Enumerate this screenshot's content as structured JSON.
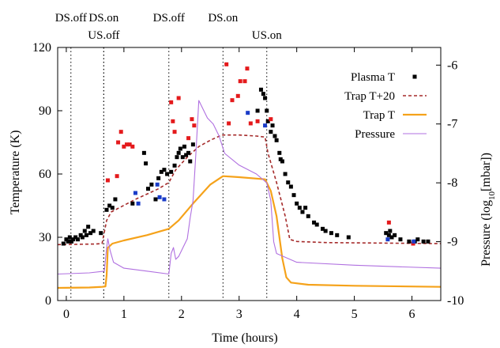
{
  "chart_data": {
    "type": "line",
    "xlabel": "Time (hours)",
    "ylabel_left": "Temperature (K)",
    "ylabel_right_prefix": "Pressure (log",
    "ylabel_right_sub": "10",
    "ylabel_right_suffix": "[mbar])",
    "xlim": [
      -0.15,
      6.5
    ],
    "ylim_left": [
      0,
      120
    ],
    "ylim_right": [
      -10,
      -5.7
    ],
    "x_ticks": [
      0,
      1,
      2,
      3,
      4,
      5,
      6
    ],
    "y_left_ticks": [
      0,
      30,
      60,
      90,
      120
    ],
    "y_right_ticks": [
      -10,
      -9,
      -8,
      -7,
      -6
    ],
    "grid": false,
    "legend_position": "top-right",
    "events": [
      {
        "x": 0.08,
        "label": "DS.off",
        "row": 1
      },
      {
        "x": 0.65,
        "label": "DS.on",
        "row": 1
      },
      {
        "x": 0.65,
        "label": "US.off",
        "row": 2
      },
      {
        "x": 1.78,
        "label": "DS.off",
        "row": 1
      },
      {
        "x": 2.72,
        "label": "DS.on",
        "row": 1
      },
      {
        "x": 3.48,
        "label": "US.on",
        "row": 2
      }
    ],
    "series": [
      {
        "name": "Plasma T",
        "kind": "scatter",
        "color": "#000000",
        "points": [
          [
            -0.05,
            27
          ],
          [
            0.0,
            29
          ],
          [
            0.03,
            28
          ],
          [
            0.06,
            30
          ],
          [
            0.09,
            28
          ],
          [
            0.12,
            29
          ],
          [
            0.16,
            30
          ],
          [
            0.2,
            29
          ],
          [
            0.25,
            31
          ],
          [
            0.28,
            30
          ],
          [
            0.32,
            33
          ],
          [
            0.35,
            31
          ],
          [
            0.38,
            35
          ],
          [
            0.42,
            32
          ],
          [
            0.47,
            33
          ],
          [
            0.6,
            32
          ],
          [
            0.7,
            43
          ],
          [
            0.75,
            45
          ],
          [
            0.8,
            44
          ],
          [
            0.85,
            48
          ],
          [
            1.15,
            46
          ],
          [
            1.35,
            70
          ],
          [
            1.38,
            65
          ],
          [
            1.42,
            53
          ],
          [
            1.48,
            55
          ],
          [
            1.55,
            48
          ],
          [
            1.6,
            58
          ],
          [
            1.65,
            61
          ],
          [
            1.7,
            62
          ],
          [
            1.75,
            60
          ],
          [
            1.82,
            61
          ],
          [
            1.88,
            64
          ],
          [
            1.92,
            68
          ],
          [
            1.95,
            70
          ],
          [
            1.98,
            72
          ],
          [
            2.02,
            68
          ],
          [
            2.05,
            73
          ],
          [
            2.08,
            69
          ],
          [
            2.12,
            70
          ],
          [
            2.15,
            66
          ],
          [
            2.2,
            74
          ],
          [
            3.32,
            90
          ],
          [
            3.38,
            100
          ],
          [
            3.42,
            98
          ],
          [
            3.45,
            96
          ],
          [
            3.48,
            90
          ],
          [
            3.5,
            85
          ],
          [
            3.55,
            80
          ],
          [
            3.58,
            83
          ],
          [
            3.62,
            78
          ],
          [
            3.65,
            76
          ],
          [
            3.7,
            70
          ],
          [
            3.72,
            67
          ],
          [
            3.75,
            66
          ],
          [
            3.8,
            60
          ],
          [
            3.85,
            56
          ],
          [
            3.9,
            54
          ],
          [
            3.95,
            50
          ],
          [
            4.0,
            46
          ],
          [
            4.05,
            44
          ],
          [
            4.1,
            42
          ],
          [
            4.15,
            44
          ],
          [
            4.2,
            40
          ],
          [
            4.3,
            37
          ],
          [
            4.35,
            36
          ],
          [
            4.45,
            34
          ],
          [
            4.5,
            33
          ],
          [
            4.6,
            32
          ],
          [
            4.7,
            31
          ],
          [
            4.9,
            30
          ],
          [
            5.55,
            32
          ],
          [
            5.6,
            31
          ],
          [
            5.62,
            33
          ],
          [
            5.65,
            30
          ],
          [
            5.7,
            31
          ],
          [
            5.8,
            29
          ],
          [
            5.95,
            28
          ],
          [
            6.05,
            28
          ],
          [
            6.1,
            29
          ],
          [
            6.2,
            28
          ],
          [
            6.28,
            28
          ]
        ]
      },
      {
        "name": "Plasma T (red)",
        "kind": "scatter",
        "color": "#e41a1c",
        "legend": false,
        "points": [
          [
            0.72,
            57
          ],
          [
            0.88,
            59
          ],
          [
            0.9,
            75
          ],
          [
            0.95,
            80
          ],
          [
            1.0,
            73
          ],
          [
            1.05,
            74
          ],
          [
            1.1,
            74
          ],
          [
            1.15,
            73
          ],
          [
            1.82,
            94
          ],
          [
            1.85,
            85
          ],
          [
            1.88,
            80
          ],
          [
            1.95,
            96
          ],
          [
            2.12,
            77
          ],
          [
            2.18,
            86
          ],
          [
            2.22,
            83
          ],
          [
            2.78,
            112
          ],
          [
            2.82,
            84
          ],
          [
            2.88,
            95
          ],
          [
            2.98,
            97
          ],
          [
            3.02,
            104
          ],
          [
            3.1,
            104
          ],
          [
            3.14,
            110
          ],
          [
            3.2,
            84
          ],
          [
            3.32,
            85
          ],
          [
            3.55,
            86
          ],
          [
            5.6,
            37
          ],
          [
            6.02,
            27
          ]
        ]
      },
      {
        "name": "Plasma T (blue)",
        "kind": "scatter",
        "color": "#1a3cc8",
        "legend": false,
        "points": [
          [
            1.2,
            51
          ],
          [
            1.25,
            46
          ],
          [
            1.58,
            55
          ],
          [
            1.62,
            49
          ],
          [
            1.7,
            48
          ],
          [
            3.15,
            89
          ],
          [
            3.45,
            83
          ],
          [
            5.58,
            29
          ],
          [
            6.03,
            28
          ]
        ]
      },
      {
        "name": "Trap T+20",
        "kind": "line",
        "color": "#a52a2a",
        "dash": "4,3",
        "axis": "left",
        "points": [
          [
            -0.15,
            26.5
          ],
          [
            0.5,
            26.8
          ],
          [
            0.62,
            27
          ],
          [
            0.7,
            38
          ],
          [
            0.78,
            42
          ],
          [
            1.2,
            48
          ],
          [
            1.6,
            53
          ],
          [
            1.78,
            56
          ],
          [
            1.9,
            62
          ],
          [
            2.1,
            68
          ],
          [
            2.3,
            73
          ],
          [
            2.5,
            76
          ],
          [
            2.7,
            78.5
          ],
          [
            3.0,
            78.5
          ],
          [
            3.3,
            78
          ],
          [
            3.45,
            77.5
          ],
          [
            3.5,
            70
          ],
          [
            3.65,
            56
          ],
          [
            3.8,
            40
          ],
          [
            3.88,
            29
          ],
          [
            4.0,
            28
          ],
          [
            4.5,
            27.5
          ],
          [
            6.5,
            27
          ]
        ]
      },
      {
        "name": "Trap T",
        "kind": "line",
        "color": "#f5a21a",
        "axis": "left",
        "points": [
          [
            -0.15,
            6
          ],
          [
            0.4,
            6.2
          ],
          [
            0.62,
            6.5
          ],
          [
            0.68,
            6.7
          ],
          [
            0.7,
            12
          ],
          [
            0.72,
            25
          ],
          [
            0.8,
            27
          ],
          [
            1.0,
            28.5
          ],
          [
            1.4,
            31
          ],
          [
            1.78,
            34
          ],
          [
            1.95,
            38
          ],
          [
            2.2,
            46
          ],
          [
            2.5,
            55
          ],
          [
            2.72,
            59
          ],
          [
            3.0,
            58.5
          ],
          [
            3.45,
            57.5
          ],
          [
            3.55,
            52
          ],
          [
            3.65,
            40
          ],
          [
            3.75,
            20
          ],
          [
            3.82,
            11
          ],
          [
            3.9,
            8.5
          ],
          [
            4.2,
            7.5
          ],
          [
            5.0,
            7
          ],
          [
            6.5,
            6.5
          ]
        ]
      },
      {
        "name": "Pressure",
        "kind": "line",
        "color": "#b070e0",
        "axis": "right",
        "points": [
          [
            -0.15,
            -9.55
          ],
          [
            0.4,
            -9.53
          ],
          [
            0.66,
            -9.5
          ],
          [
            0.7,
            -9.1
          ],
          [
            0.72,
            -8.95
          ],
          [
            0.76,
            -9.15
          ],
          [
            0.82,
            -9.35
          ],
          [
            1.0,
            -9.45
          ],
          [
            1.4,
            -9.5
          ],
          [
            1.78,
            -9.55
          ],
          [
            1.82,
            -9.2
          ],
          [
            1.86,
            -9.1
          ],
          [
            1.9,
            -9.3
          ],
          [
            1.95,
            -9.25
          ],
          [
            2.05,
            -9.05
          ],
          [
            2.1,
            -8.95
          ],
          [
            2.15,
            -8.6
          ],
          [
            2.2,
            -8.3
          ],
          [
            2.25,
            -7.5
          ],
          [
            2.3,
            -6.6
          ],
          [
            2.35,
            -6.7
          ],
          [
            2.45,
            -6.9
          ],
          [
            2.55,
            -7.0
          ],
          [
            2.65,
            -7.2
          ],
          [
            2.75,
            -7.5
          ],
          [
            3.0,
            -7.7
          ],
          [
            3.3,
            -7.85
          ],
          [
            3.48,
            -8.0
          ],
          [
            3.55,
            -8.3
          ],
          [
            3.6,
            -9.0
          ],
          [
            3.65,
            -9.2
          ],
          [
            4.0,
            -9.35
          ],
          [
            5.0,
            -9.4
          ],
          [
            6.5,
            -9.45
          ]
        ]
      }
    ]
  }
}
